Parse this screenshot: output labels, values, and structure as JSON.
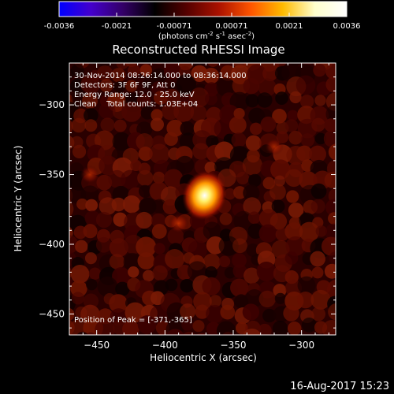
{
  "chart_data": {
    "type": "heatmap",
    "title": "Reconstructed RHESSI Image",
    "xlabel": "Heliocentric X (arcsec)",
    "ylabel": "Heliocentric Y (arcsec)",
    "xlim": [
      -470,
      -275
    ],
    "ylim": [
      -465,
      -270
    ],
    "x_ticks": [
      -450,
      -400,
      -350,
      -300
    ],
    "y_ticks": [
      -450,
      -400,
      -350,
      -300
    ],
    "colorbar": {
      "range": [
        -0.0036,
        0.0036
      ],
      "ticks": [
        "-0.0036",
        "-0.0021",
        "-0.00071",
        "0.00071",
        "0.0021",
        "0.0036"
      ],
      "colors": [
        "#0000ff",
        "#4400cc",
        "#330066",
        "#000000",
        "#550000",
        "#aa1100",
        "#ff5500",
        "#ffbb00",
        "#ffffcc",
        "#ffffff"
      ]
    },
    "annotations": [
      "30-Nov-2014 08:26:14.000 to 08:36:14.000",
      "Detectors: 3F 6F 9F, Att 0",
      "Energy Range: 12.0 - 25.0 keV",
      "Clean    Total counts: 1.03E+04"
    ],
    "peak_label": "Position of Peak = [-371,-365]",
    "peak": {
      "x": -371,
      "y": -365
    },
    "secondary_sources": [
      {
        "x": -390,
        "y": -385,
        "strength": 0.35
      },
      {
        "x": -455,
        "y": -350,
        "strength": 0.25
      },
      {
        "x": -320,
        "y": -330,
        "strength": 0.2
      }
    ],
    "grid": false
  },
  "colorbar_unit_label": "(photons cm",
  "colorbar_unit_parts": {
    "a": "(photons cm",
    "a_sup": "-2",
    "b": " s",
    "b_sup": "-1",
    "c": " asec",
    "c_sup": "-2",
    "d": ")"
  },
  "footer_date": "16-Aug-2017 15:23"
}
